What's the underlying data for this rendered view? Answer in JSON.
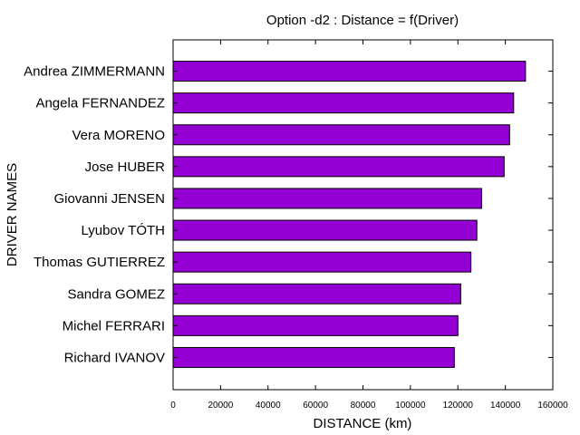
{
  "chart_data": {
    "type": "bar",
    "orientation": "horizontal",
    "title": "Option -d2 : Distance = f(Driver)",
    "xlabel": "DISTANCE (km)",
    "ylabel": "DRIVER NAMES",
    "xlim": [
      0,
      160000
    ],
    "x_ticks": [
      0,
      20000,
      40000,
      60000,
      80000,
      100000,
      120000,
      140000,
      160000
    ],
    "x_tick_labels": [
      "0",
      "20000",
      "40000",
      "60000",
      "80000",
      "100000",
      "120000",
      "140000",
      "160000"
    ],
    "grid": false,
    "bar_color": "#9400d3",
    "categories": [
      "Andrea ZIMMERMANN",
      "Angela FERNANDEZ",
      "Vera MORENO",
      "Jose HUBER",
      "Giovanni JENSEN",
      "Lyubov TÓTH",
      "Thomas GUTIERREZ",
      "Sandra GOMEZ",
      "Michel FERRARI",
      "Richard IVANOV"
    ],
    "values": [
      148500,
      143500,
      141800,
      139500,
      130000,
      128000,
      125500,
      121200,
      120000,
      118500
    ]
  }
}
